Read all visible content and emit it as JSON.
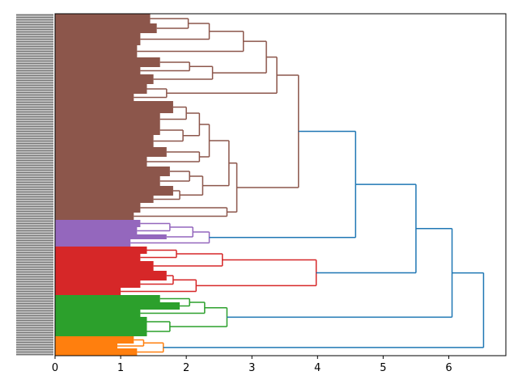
{
  "chart_data": {
    "type": "dendrogram",
    "orientation": "right",
    "xlim": [
      0,
      6.87
    ],
    "xticks": [
      0,
      1,
      2,
      3,
      4,
      5,
      6
    ],
    "above_threshold_color": "#1f77b4",
    "tree": {
      "h": 6.53,
      "c": [
        {
          "h": 6.05,
          "c": [
            {
              "h": 5.5,
              "c": [
                {
                  "h": 4.58,
                  "c": [
                    {
                      "h": 3.71,
                      "color": "#8c564b",
                      "c": [
                        {
                          "h": 3.38,
                          "c": [
                            {
                              "h": 3.22,
                              "c": [
                                {
                                  "h": 2.87,
                                  "c": [
                                    {
                                      "h": 2.35,
                                      "c": [
                                        {
                                          "h": 2.03,
                                          "c": [
                                            {
                                              "n": 4,
                                              "h": 1.45
                                            },
                                            {
                                              "n": 4,
                                              "h": 1.55
                                            }
                                          ]
                                        },
                                        {
                                          "n": 5,
                                          "h": 1.3
                                        }
                                      ]
                                    },
                                    {
                                      "n": 5,
                                      "h": 1.25
                                    }
                                  ]
                                },
                                {
                                  "h": 2.4,
                                  "c": [
                                    {
                                      "h": 2.05,
                                      "c": [
                                        {
                                          "n": 4,
                                          "h": 1.6
                                        },
                                        {
                                          "n": 3,
                                          "h": 1.3
                                        }
                                      ]
                                    },
                                    {
                                      "n": 4,
                                      "h": 1.5
                                    }
                                  ]
                                }
                              ]
                            },
                            {
                              "h": 1.7,
                              "c": [
                                {
                                  "n": 4,
                                  "h": 1.4
                                },
                                {
                                  "n": 3,
                                  "h": 1.2
                                }
                              ]
                            }
                          ]
                        },
                        {
                          "h": 2.77,
                          "c": [
                            {
                              "h": 2.65,
                              "c": [
                                {
                                  "h": 2.35,
                                  "c": [
                                    {
                                      "h": 2.2,
                                      "c": [
                                        {
                                          "h": 2.0,
                                          "c": [
                                            {
                                              "n": 5,
                                              "h": 1.8
                                            },
                                            {
                                              "n": 5,
                                              "h": 1.6
                                            }
                                          ]
                                        },
                                        {
                                          "h": 1.95,
                                          "c": [
                                            {
                                              "n": 4,
                                              "h": 1.6
                                            },
                                            {
                                              "n": 5,
                                              "h": 1.5
                                            }
                                          ]
                                        }
                                      ]
                                    },
                                    {
                                      "h": 2.2,
                                      "c": [
                                        {
                                          "n": 4,
                                          "h": 1.7
                                        },
                                        {
                                          "n": 4,
                                          "h": 1.4
                                        }
                                      ]
                                    }
                                  ]
                                },
                                {
                                  "h": 2.25,
                                  "c": [
                                    {
                                      "h": 2.05,
                                      "c": [
                                        {
                                          "n": 4,
                                          "h": 1.75
                                        },
                                        {
                                          "n": 4,
                                          "h": 1.6
                                        }
                                      ]
                                    },
                                    {
                                      "h": 1.9,
                                      "c": [
                                        {
                                          "n": 4,
                                          "h": 1.8
                                        },
                                        {
                                          "n": 3,
                                          "h": 1.5
                                        }
                                      ]
                                    }
                                  ]
                                }
                              ]
                            },
                            {
                              "h": 2.62,
                              "c": [
                                {
                                  "n": 4,
                                  "h": 1.3
                                },
                                {
                                  "n": 3,
                                  "h": 1.2
                                }
                              ]
                            }
                          ]
                        }
                      ]
                    },
                    {
                      "h": 2.35,
                      "color": "#9467bd",
                      "c": [
                        {
                          "h": 2.1,
                          "c": [
                            {
                              "h": 1.75,
                              "c": [
                                {
                                  "n": 3,
                                  "h": 1.3
                                },
                                {
                                  "n": 3,
                                  "h": 1.25
                                }
                              ]
                            },
                            {
                              "n": 2,
                              "h": 1.7
                            }
                          ]
                        },
                        {
                          "n": 3,
                          "h": 1.15
                        }
                      ]
                    }
                  ]
                },
                {
                  "h": 3.98,
                  "color": "#d62728",
                  "c": [
                    {
                      "h": 2.55,
                      "c": [
                        {
                          "h": 1.85,
                          "c": [
                            {
                              "n": 3,
                              "h": 1.4
                            },
                            {
                              "n": 3,
                              "h": 1.3
                            }
                          ]
                        },
                        {
                          "n": 4,
                          "h": 1.5
                        }
                      ]
                    },
                    {
                      "h": 2.15,
                      "c": [
                        {
                          "h": 1.8,
                          "c": [
                            {
                              "n": 4,
                              "h": 1.7
                            },
                            {
                              "n": 3,
                              "h": 1.3
                            }
                          ]
                        },
                        {
                          "n": 3,
                          "h": 1.0
                        }
                      ]
                    }
                  ]
                }
              ]
            },
            {
              "h": 2.62,
              "color": "#2ca02c",
              "c": [
                {
                  "h": 2.28,
                  "c": [
                    {
                      "h": 2.05,
                      "c": [
                        {
                          "n": 3,
                          "h": 1.6
                        },
                        {
                          "n": 3,
                          "h": 1.9
                        }
                      ]
                    },
                    {
                      "n": 3,
                      "h": 1.3
                    }
                  ]
                },
                {
                  "h": 1.75,
                  "c": [
                    {
                      "n": 4,
                      "h": 1.4
                    },
                    {
                      "n": 4,
                      "h": 1.4
                    }
                  ]
                }
              ]
            }
          ]
        },
        {
          "h": 1.65,
          "color": "#ff7f0e",
          "c": [
            {
              "h": 1.35,
              "c": [
                {
                  "n": 3,
                  "h": 1.2
                },
                {
                  "n": 2,
                  "h": 0.95
                }
              ]
            },
            {
              "n": 3,
              "h": 1.25
            }
          ]
        }
      ]
    }
  }
}
